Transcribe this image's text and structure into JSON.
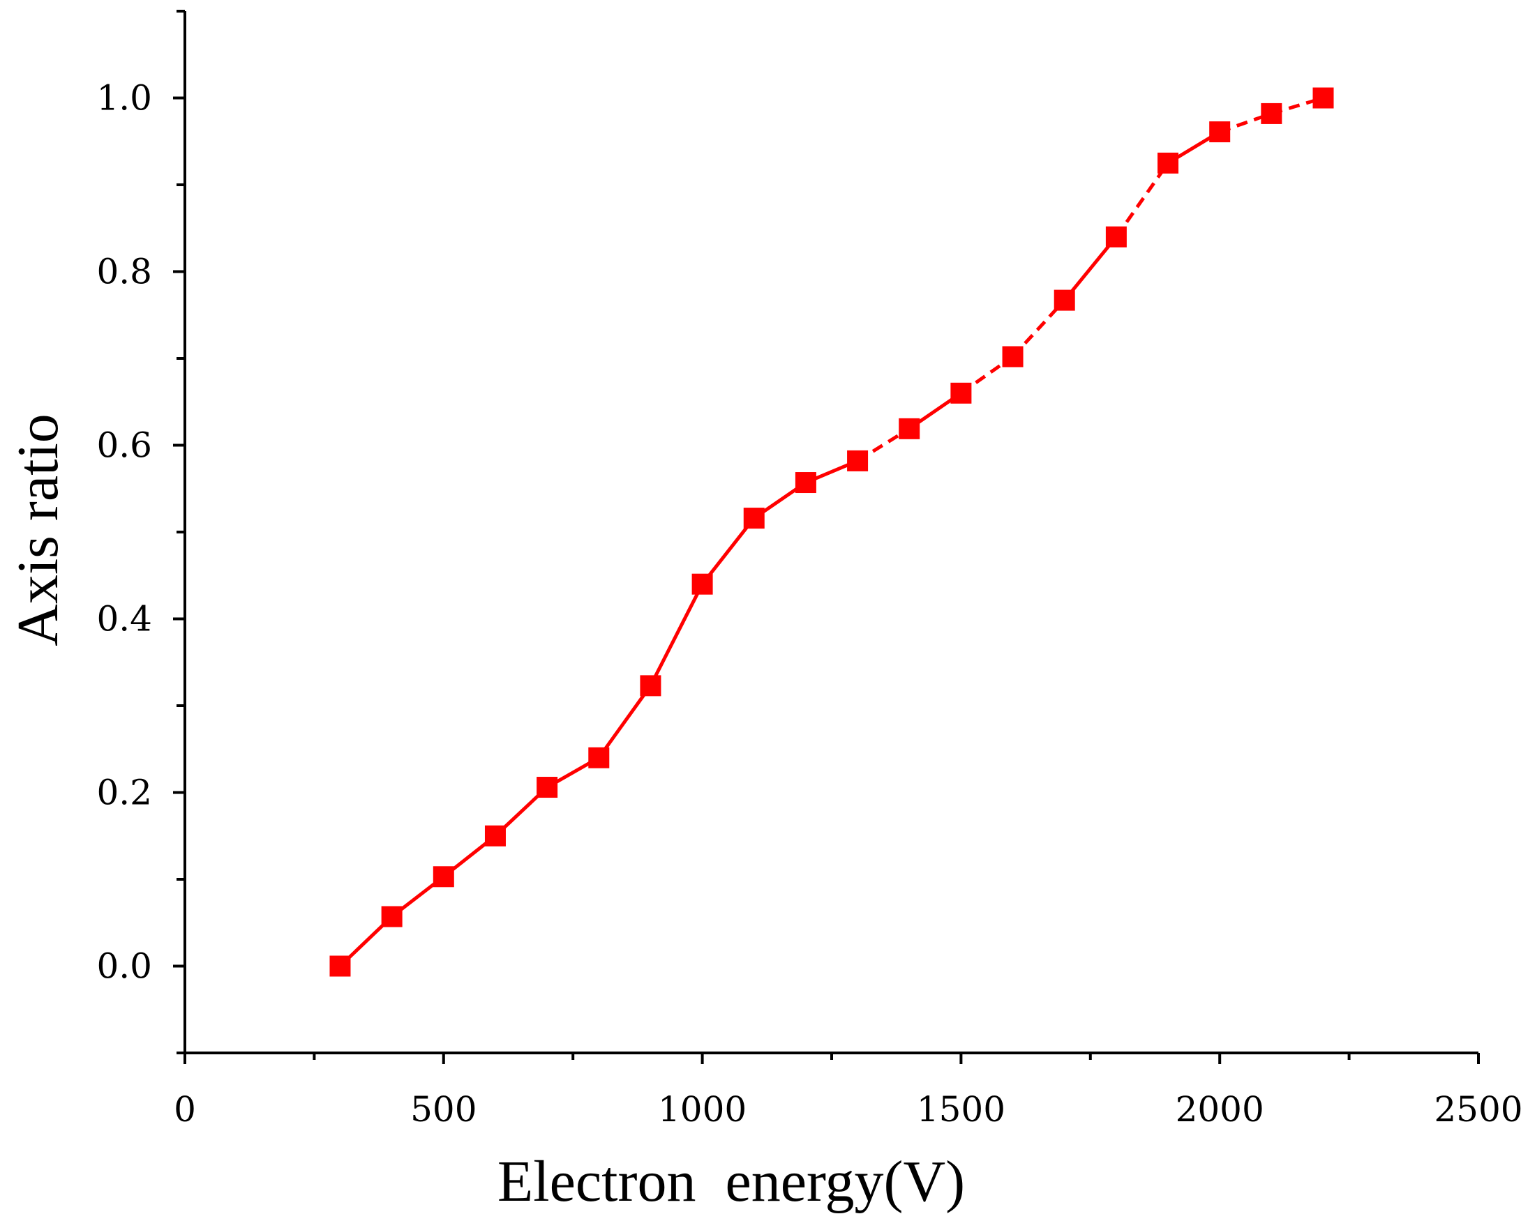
{
  "chart_data": {
    "type": "line",
    "title": "",
    "xlabel": "Electron  energy(V)",
    "ylabel": "Axis ratio",
    "xlim": [
      0,
      2500
    ],
    "ylim": [
      -0.1,
      1.1
    ],
    "x_ticks": [
      0,
      500,
      1000,
      1500,
      2000,
      2500
    ],
    "x_tick_labels": [
      "0",
      "500",
      "1000",
      "1500",
      "2000",
      "2500"
    ],
    "x_minor_ticks": [
      250,
      750,
      1250,
      1750,
      2250
    ],
    "y_ticks": [
      0.0,
      0.2,
      0.4,
      0.6,
      0.8,
      1.0
    ],
    "y_tick_labels": [
      "0.0",
      "0.2",
      "0.4",
      "0.6",
      "0.8",
      "1.0"
    ],
    "y_minor_ticks": [
      -0.1,
      0.1,
      0.3,
      0.5,
      0.7,
      0.9,
      1.1
    ],
    "grid": false,
    "series": [
      {
        "name": "Axis ratio",
        "color": "#ff0000",
        "marker": "square",
        "x": [
          300,
          400,
          500,
          600,
          700,
          800,
          900,
          1000,
          1100,
          1200,
          1300,
          1400,
          1500,
          1600,
          1700,
          1800,
          1900,
          2000,
          2100,
          2200
        ],
        "y": [
          0.0,
          0.057,
          0.103,
          0.15,
          0.206,
          0.24,
          0.323,
          0.44,
          0.516,
          0.557,
          0.582,
          0.619,
          0.66,
          0.702,
          0.767,
          0.84,
          0.925,
          0.961,
          0.982,
          1.0
        ],
        "dashed_segments_after_index": [
          10,
          12,
          13,
          15,
          17,
          18
        ]
      }
    ]
  }
}
